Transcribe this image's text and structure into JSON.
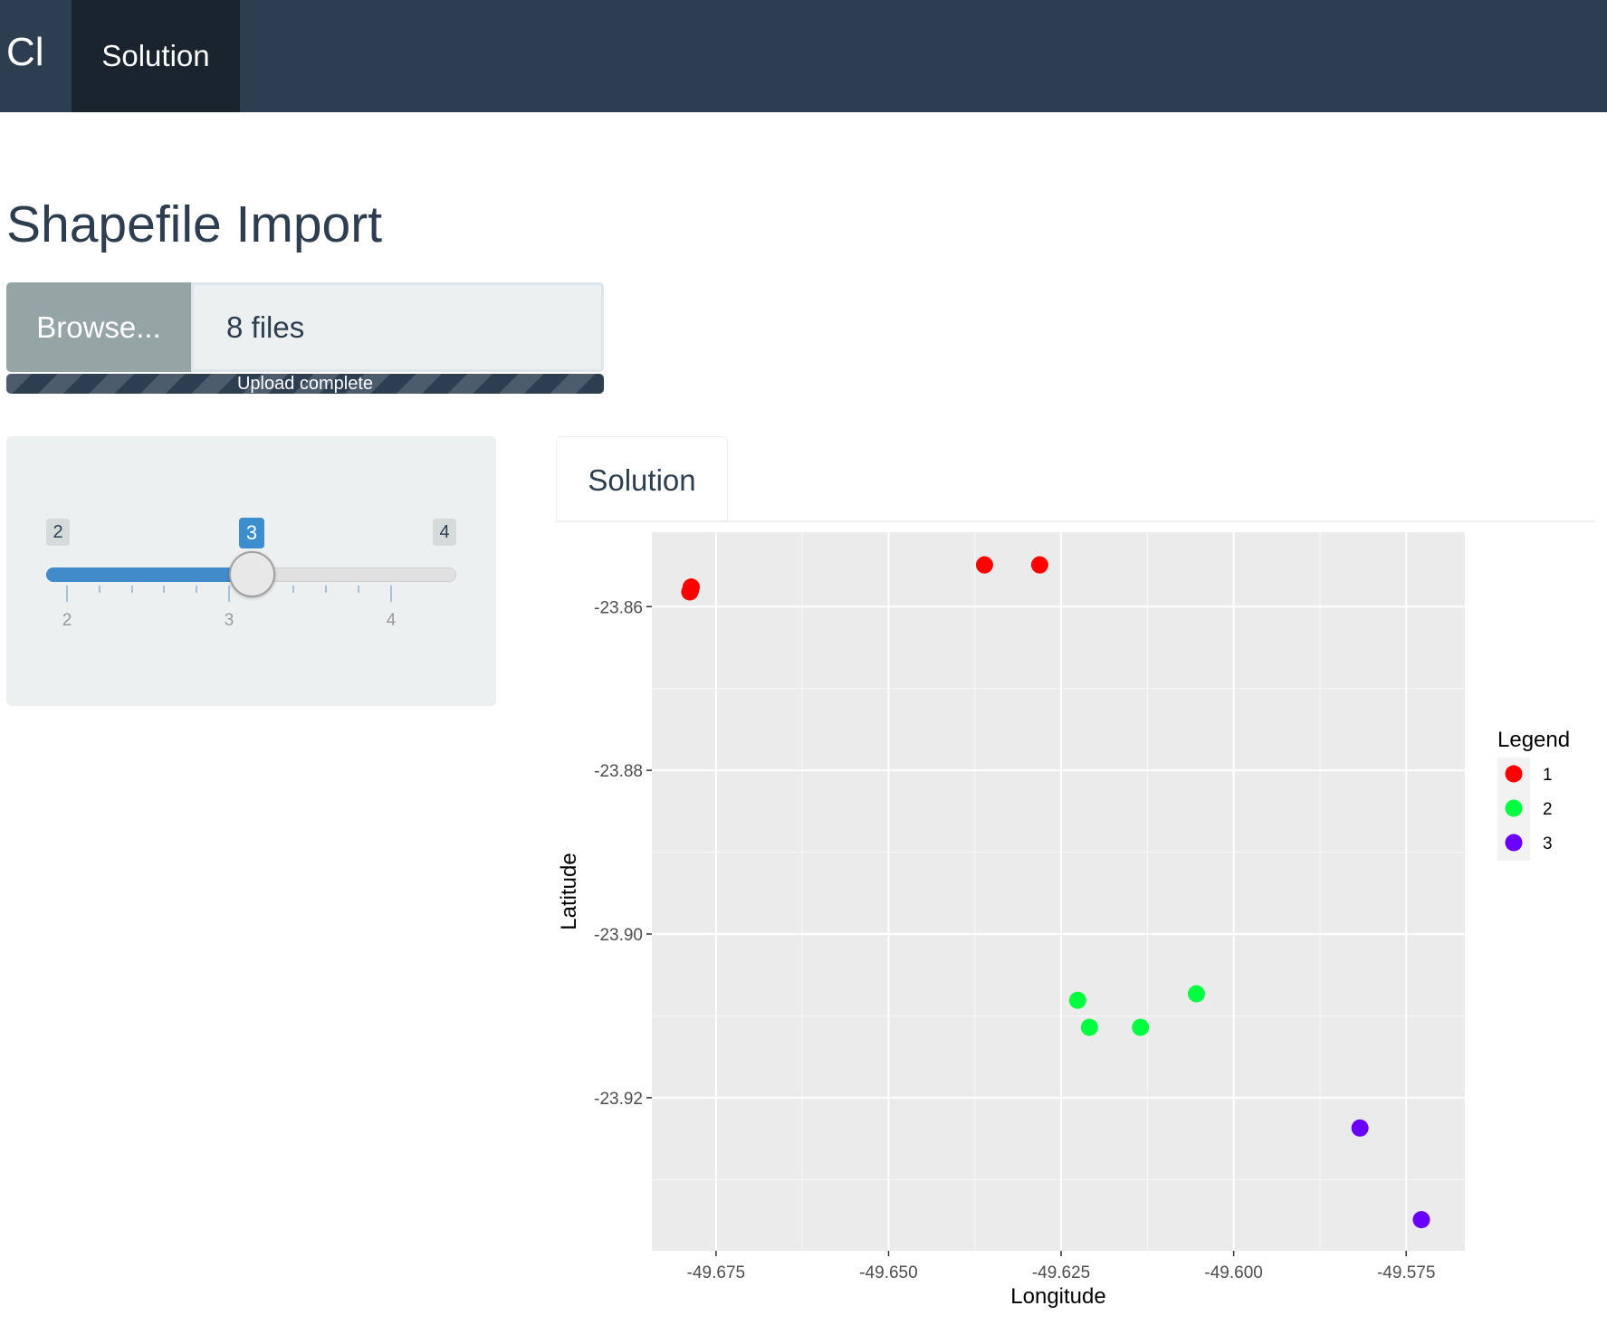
{
  "navbar": {
    "brand": "Cl",
    "tab_label": "Solution"
  },
  "page": {
    "title": "Shapefile Import"
  },
  "file_input": {
    "button_label": "Browse...",
    "value": "8 files",
    "progress_text": "Upload complete",
    "progress": 1.0
  },
  "slider": {
    "min": 2,
    "max": 4,
    "value": 3,
    "min_label": "2",
    "max_label": "4",
    "value_label": "3",
    "tick_labels": [
      "2",
      "3",
      "4"
    ]
  },
  "tabs": {
    "active_label": "Solution"
  },
  "chart_data": {
    "type": "scatter",
    "xlabel": "Longitude",
    "ylabel": "Latitude",
    "xlim": [
      -49.6843,
      -49.5665
    ],
    "ylim": [
      -23.9387,
      -23.8509
    ],
    "x_ticks": [
      -49.675,
      -49.65,
      -49.625,
      -49.6,
      -49.575
    ],
    "x_tick_labels": [
      "-49.675",
      "-49.650",
      "-49.625",
      "-49.600",
      "-49.575"
    ],
    "y_ticks": [
      -23.86,
      -23.88,
      -23.9,
      -23.92
    ],
    "y_tick_labels": [
      "-23.86",
      "-23.88",
      "-23.90",
      "-23.92"
    ],
    "grid": true,
    "background": "#ebebeb",
    "legend": {
      "title": "Legend",
      "position": "right"
    },
    "series": [
      {
        "name": "1",
        "color": "#ff0000",
        "points": [
          [
            -49.6788,
            -23.8582
          ],
          [
            -49.6786,
            -23.8576
          ],
          [
            -49.6787,
            -23.858
          ],
          [
            -49.6361,
            -23.8549
          ],
          [
            -49.6281,
            -23.8549
          ]
        ]
      },
      {
        "name": "2",
        "color": "#00ff41",
        "points": [
          [
            -49.6226,
            -23.9081
          ],
          [
            -49.6209,
            -23.9114
          ],
          [
            -49.6135,
            -23.9114
          ],
          [
            -49.6054,
            -23.9073
          ]
        ]
      },
      {
        "name": "3",
        "color": "#6a00ff",
        "points": [
          [
            -49.5817,
            -23.9237
          ],
          [
            -49.5728,
            -23.9349
          ]
        ]
      }
    ]
  }
}
